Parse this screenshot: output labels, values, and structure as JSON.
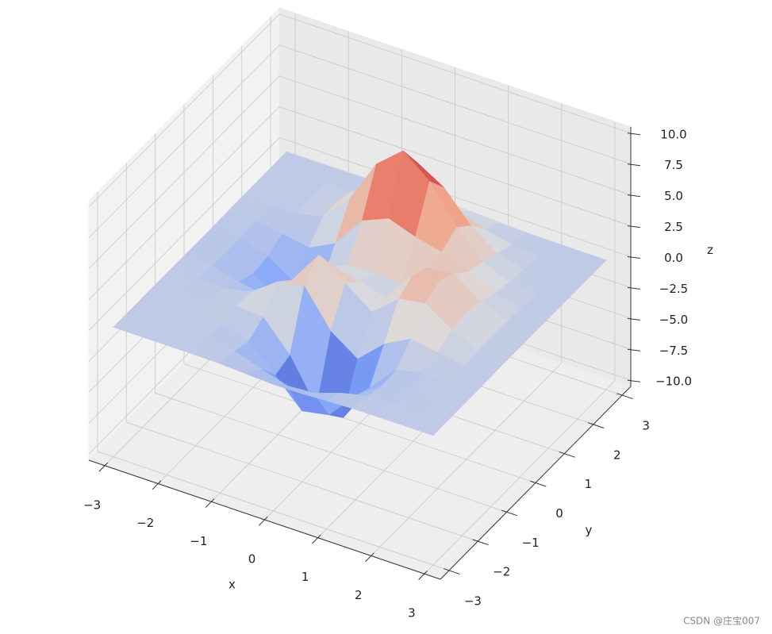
{
  "chart_data": {
    "type": "surface3d",
    "x": [
      -3,
      -2.5,
      -2,
      -1.5,
      -1,
      -0.5,
      0,
      0.5,
      1,
      1.5,
      2,
      2.5,
      3
    ],
    "y": [
      -3,
      -2.5,
      -2,
      -1.5,
      -1,
      -0.5,
      0,
      0.5,
      1,
      1.5,
      2,
      2.5,
      3
    ],
    "z": [
      [
        0,
        0,
        0,
        0,
        -0.01,
        -0.03,
        -0.04,
        -0.03,
        -0.01,
        0,
        0,
        0,
        0
      ],
      [
        0,
        0,
        0.01,
        0.01,
        -0.06,
        -0.2,
        -0.3,
        -0.25,
        -0.11,
        -0.02,
        0.01,
        0,
        0
      ],
      [
        0,
        0.02,
        0.05,
        0.08,
        -0.13,
        -0.8,
        -1.33,
        -1.12,
        -0.48,
        -0.01,
        0.08,
        0.03,
        0.01
      ],
      [
        0,
        0,
        0.05,
        0.33,
        0.3,
        -1.21,
        -2.77,
        -2.49,
        -0.86,
        0.48,
        0.55,
        0.19,
        0.03
      ],
      [
        -0.03,
        -0.23,
        -0.59,
        0.15,
        1.86,
        0.8,
        -1.65,
        -2.0,
        0.23,
        2.61,
        2.1,
        0.69,
        0.11
      ],
      [
        -0.14,
        -0.92,
        -2.63,
        -2.19,
        2.23,
        3.55,
        1.48,
        0.39,
        2.79,
        6.2,
        4.55,
        1.47,
        0.23
      ],
      [
        -0.24,
        -1.57,
        -4.75,
        -5.68,
        -0.72,
        2.0,
        0.98,
        0.46,
        3.69,
        8.0,
        5.85,
        1.89,
        0.3
      ],
      [
        -0.22,
        -1.41,
        -4.34,
        -5.76,
        -2.22,
        0.39,
        0.37,
        0.37,
        2.93,
        6.25,
        4.56,
        1.47,
        0.23
      ],
      [
        -0.11,
        -0.69,
        -2.1,
        -2.63,
        -0.27,
        2.2,
        2.94,
        2.38,
        2.43,
        3.26,
        2.21,
        0.7,
        0.11
      ],
      [
        -0.03,
        -0.18,
        -0.53,
        -0.44,
        0.88,
        2.56,
        3.27,
        2.56,
        1.58,
        1.19,
        0.68,
        0.21,
        0.03
      ],
      [
        -0.01,
        -0.03,
        -0.06,
        0.04,
        0.5,
        1.12,
        1.41,
        1.09,
        0.58,
        0.29,
        0.13,
        0.04,
        0.01
      ],
      [
        0,
        0,
        -0.01,
        0.02,
        0.1,
        0.23,
        0.29,
        0.23,
        0.11,
        0.05,
        0.02,
        0,
        0
      ],
      [
        0,
        0,
        0,
        0,
        0.01,
        0.03,
        0.03,
        0.03,
        0.01,
        0,
        0,
        0,
        0
      ]
    ],
    "cmap": "coolwarm",
    "xlabel": "x",
    "ylabel": "y",
    "zlabel": "z",
    "xlim": [
      -3.3,
      3.3
    ],
    "ylim": [
      -3.3,
      3.3
    ],
    "zlim": [
      -10.5,
      10.5
    ],
    "xticks": [
      {
        "value": -3,
        "label": "−3"
      },
      {
        "value": -2,
        "label": "−2"
      },
      {
        "value": -1,
        "label": "−1"
      },
      0,
      1,
      2,
      3
    ],
    "yticks": [
      {
        "value": -3,
        "label": "−3"
      },
      {
        "value": -2,
        "label": "−2"
      },
      {
        "value": -1,
        "label": "−1"
      },
      0,
      1,
      2,
      3
    ],
    "zticks": [
      {
        "value": -10,
        "label": "−10.0"
      },
      {
        "value": -7.5,
        "label": "−7.5"
      },
      {
        "value": -5,
        "label": "−5.0"
      },
      {
        "value": -2.5,
        "label": "−2.5"
      },
      {
        "value": 0,
        "label": "0.0"
      },
      2.5,
      {
        "value": 5,
        "label": "5.0"
      },
      7.5,
      {
        "value": 10,
        "label": "10.0"
      }
    ],
    "grid": true
  },
  "watermark": "CSDN @庄宝007"
}
